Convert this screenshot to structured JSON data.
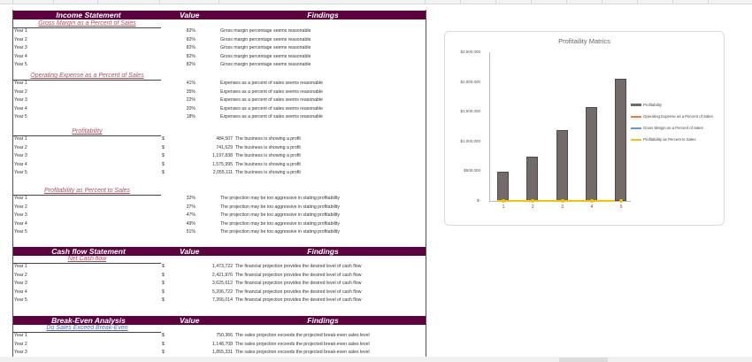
{
  "income": {
    "header": {
      "c1": "Income Statement",
      "c2": "Value",
      "c3": "Findings"
    },
    "gross": {
      "title": "Gross Margin as a Percent of Sales",
      "rows": [
        {
          "y": "Year 1",
          "v": "82%",
          "f": "Gross margin percentage seems reasonable"
        },
        {
          "y": "Year 2",
          "v": "82%",
          "f": "Gross margin percentage seems reasonable"
        },
        {
          "y": "Year 3",
          "v": "82%",
          "f": "Gross margin percentage seems reasonable"
        },
        {
          "y": "Year 4",
          "v": "82%",
          "f": "Gross margin percentage seems reasonable"
        },
        {
          "y": "Year 5",
          "v": "82%",
          "f": "Gross margin percentage seems reasonable"
        }
      ]
    },
    "opex": {
      "title": "Operating Expense as a Percent of Sales",
      "rows": [
        {
          "y": "Year 1",
          "v": "41%",
          "f": "Expenses as a percent of sales seems reasonable"
        },
        {
          "y": "Year 2",
          "v": "35%",
          "f": "Expenses as a percent of sales seems reasonable"
        },
        {
          "y": "Year 3",
          "v": "22%",
          "f": "Expenses as a percent of sales seems reasonable"
        },
        {
          "y": "Year 4",
          "v": "20%",
          "f": "Expenses as a percent of sales seems reasonable"
        },
        {
          "y": "Year 5",
          "v": "18%",
          "f": "Expenses as a percent of sales seems reasonable"
        }
      ]
    },
    "profit": {
      "title": "Profitability",
      "rows": [
        {
          "y": "Year 1",
          "d": "$",
          "v": "484,507",
          "f": "The business is showing a profit"
        },
        {
          "y": "Year 2",
          "d": "$",
          "v": "741,629",
          "f": "The business is showing a profit"
        },
        {
          "y": "Year 3",
          "d": "$",
          "v": "1,197,838",
          "f": "The business is showing a profit"
        },
        {
          "y": "Year 4",
          "d": "$",
          "v": "1,575,995",
          "f": "The business is showing a profit"
        },
        {
          "y": "Year 5",
          "d": "$",
          "v": "2,055,111",
          "f": "The business is showing a profit"
        }
      ]
    },
    "profitpct": {
      "title": "Profitability as Percent to Sales",
      "rows": [
        {
          "y": "Year 1",
          "v": "32%",
          "f": "The projection may be too aggressive in stating profitability"
        },
        {
          "y": "Year 2",
          "v": "37%",
          "f": "The projection may be too aggressive in stating profitability"
        },
        {
          "y": "Year 3",
          "v": "47%",
          "f": "The projection may be too aggressive in stating profitability"
        },
        {
          "y": "Year 4",
          "v": "49%",
          "f": "The projection may be too aggressive in stating profitability"
        },
        {
          "y": "Year 5",
          "v": "51%",
          "f": "The projection may be too aggressive in stating profitability"
        }
      ]
    }
  },
  "cash": {
    "header": {
      "c1": "Cash flow Statement",
      "c2": "Value",
      "c3": "Findings"
    },
    "net": {
      "title": "Net Cash flow",
      "rows": [
        {
          "y": "Year 1",
          "d": "$",
          "v": "1,473,722",
          "f": "The financial projection provides the desired level of cash flow"
        },
        {
          "y": "Year 2",
          "d": "$",
          "v": "2,421,876",
          "f": "The financial projection provides the desired level of cash flow"
        },
        {
          "y": "Year 3",
          "d": "$",
          "v": "3,625,612",
          "f": "The financial projection provides the desired level of cash flow"
        },
        {
          "y": "Year 4",
          "d": "$",
          "v": "5,206,722",
          "f": "The financial projection provides the desired level of cash flow"
        },
        {
          "y": "Year 5",
          "d": "$",
          "v": "7,266,014",
          "f": "The financial projection provides the desired level of cash flow"
        }
      ]
    }
  },
  "breakeven": {
    "header": {
      "c1": "Break-Even Analysis",
      "c2": "Value",
      "c3": "Findings"
    },
    "sales": {
      "title": "Do Sales Exceed Break-Even",
      "rows": [
        {
          "y": "Year 1",
          "d": "$",
          "v": "750,366",
          "f": "The sales projection exceeds the projected break-even sales level"
        },
        {
          "y": "Year 2",
          "d": "$",
          "v": "1,148,708",
          "f": "The sales projection exceeds the projected break-even sales level"
        },
        {
          "y": "Year 3",
          "d": "$",
          "v": "1,855,331",
          "f": "The sales projection exceeds the projected break-even sales level"
        }
      ]
    }
  },
  "chart": {
    "title": "Profitaility Matrics",
    "yticks": [
      "$2,500,000",
      "$2,000,000",
      "$1,500,000",
      "$1,000,000",
      "$500,000",
      "$-"
    ],
    "xticks": [
      "1",
      "2",
      "3",
      "4",
      "5"
    ],
    "legend": [
      "Profitability",
      "Operating Expense as a Percent of Sales",
      "Gross Margin as a Percent of Sales",
      "Profitability as Percent to Sales"
    ],
    "colors": {
      "bar": "#726b69",
      "opex": "#ed7d31",
      "gross": "#5b9bd5",
      "profitpct": "#f5c400"
    }
  },
  "chart_data": {
    "type": "bar",
    "title": "Profitaility Matrics",
    "categories": [
      "1",
      "2",
      "3",
      "4",
      "5"
    ],
    "series": [
      {
        "name": "Profitability",
        "type": "bar",
        "values": [
          484507,
          741629,
          1197838,
          1575995,
          2055111
        ]
      },
      {
        "name": "Operating Expense as a Percent of Sales",
        "type": "line",
        "values": [
          0.41,
          0.35,
          0.22,
          0.2,
          0.18
        ]
      },
      {
        "name": "Gross Margin as a Percent of Sales",
        "type": "line",
        "values": [
          0.82,
          0.82,
          0.82,
          0.82,
          0.82
        ]
      },
      {
        "name": "Profitability as Percent to Sales",
        "type": "line",
        "values": [
          0.32,
          0.37,
          0.47,
          0.49,
          0.51
        ]
      }
    ],
    "ylim": [
      0,
      2500000
    ],
    "yticks": [
      "$-",
      "$500,000",
      "$1,000,000",
      "$1,500,000",
      "$2,000,000",
      "$2,500,000"
    ],
    "legend_position": "right",
    "grid": false
  }
}
